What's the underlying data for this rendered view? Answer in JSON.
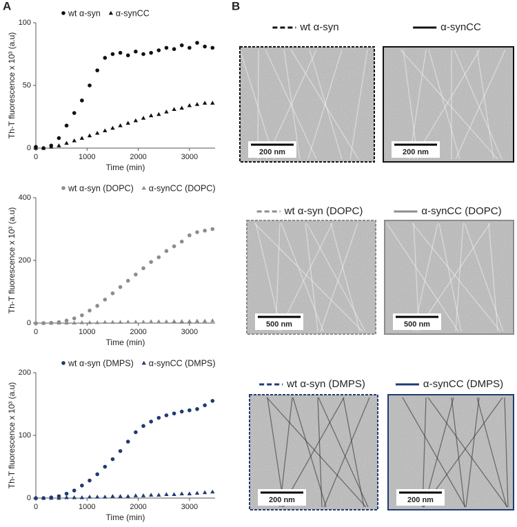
{
  "panel_a": {
    "label": "A"
  },
  "chart_data": [
    {
      "type": "scatter",
      "x_label": "Time (min)",
      "y_label": "Th-T fluorescence x 10³ (a.u)",
      "xlim": [
        0,
        3500
      ],
      "xticks": [
        0,
        1000,
        2000,
        3000
      ],
      "ylim": [
        0,
        100
      ],
      "yticks": [
        0,
        50,
        100
      ],
      "x": [
        0,
        150,
        300,
        450,
        600,
        750,
        900,
        1050,
        1200,
        1350,
        1500,
        1650,
        1800,
        1950,
        2100,
        2250,
        2400,
        2550,
        2700,
        2850,
        3000,
        3150,
        3300,
        3450
      ],
      "series": [
        {
          "name": "wt α-syn",
          "color": "#111111",
          "marker": "circle",
          "values": [
            1,
            0,
            2,
            8,
            18,
            28,
            38,
            50,
            62,
            72,
            75,
            76,
            74,
            77,
            75,
            76,
            78,
            80,
            79,
            82,
            80,
            84,
            81,
            80
          ]
        },
        {
          "name": "α-synCC",
          "color": "#111111",
          "marker": "triangle",
          "values": [
            0,
            0,
            1,
            2,
            4,
            6,
            8,
            10,
            12,
            14,
            16,
            18,
            20,
            22,
            24,
            26,
            27,
            29,
            31,
            32,
            34,
            35,
            36,
            36
          ]
        }
      ]
    },
    {
      "type": "scatter",
      "x_label": "Time (min)",
      "y_label": "Th-T fluorescence x 10³ (a.u)",
      "xlim": [
        0,
        3500
      ],
      "xticks": [
        0,
        1000,
        2000,
        3000
      ],
      "ylim": [
        0,
        400
      ],
      "yticks": [
        0,
        200,
        400
      ],
      "x": [
        0,
        150,
        300,
        450,
        600,
        750,
        900,
        1050,
        1200,
        1350,
        1500,
        1650,
        1800,
        1950,
        2100,
        2250,
        2400,
        2550,
        2700,
        2850,
        3000,
        3150,
        3300,
        3450
      ],
      "series": [
        {
          "name": "wt α-syn (DOPC)",
          "color": "#8c8c8c",
          "marker": "circle",
          "values": [
            0,
            0,
            1,
            3,
            8,
            15,
            25,
            40,
            55,
            75,
            95,
            115,
            135,
            155,
            175,
            195,
            210,
            230,
            245,
            260,
            280,
            290,
            295,
            300
          ]
        },
        {
          "name": "α-synCC (DOPC)",
          "color": "#8c8c8c",
          "marker": "triangle",
          "values": [
            0,
            0,
            0,
            1,
            1,
            1,
            2,
            2,
            2,
            3,
            3,
            3,
            4,
            4,
            4,
            5,
            5,
            5,
            6,
            6,
            6,
            7,
            7,
            8
          ]
        }
      ]
    },
    {
      "type": "scatter",
      "x_label": "Time (min)",
      "y_label": "Th-T fluorescence x 10³ (a.u)",
      "xlim": [
        0,
        3500
      ],
      "xticks": [
        0,
        1000,
        2000,
        3000
      ],
      "ylim": [
        0,
        200
      ],
      "yticks": [
        0,
        100,
        200
      ],
      "x": [
        0,
        150,
        300,
        450,
        600,
        750,
        900,
        1050,
        1200,
        1350,
        1500,
        1650,
        1800,
        1950,
        2100,
        2250,
        2400,
        2550,
        2700,
        2850,
        3000,
        3150,
        3300,
        3450
      ],
      "series": [
        {
          "name": "wt α-syn (DMPS)",
          "color": "#1f3a73",
          "marker": "circle",
          "values": [
            0,
            0,
            1,
            3,
            7,
            12,
            20,
            28,
            38,
            50,
            62,
            75,
            90,
            105,
            115,
            122,
            128,
            132,
            135,
            138,
            140,
            142,
            148,
            155
          ]
        },
        {
          "name": "α-synCC (DMPS)",
          "color": "#1f3a73",
          "marker": "triangle",
          "values": [
            0,
            0,
            0,
            0,
            1,
            1,
            1,
            2,
            2,
            2,
            3,
            3,
            3,
            4,
            4,
            5,
            5,
            6,
            6,
            7,
            7,
            8,
            9,
            10
          ]
        }
      ]
    }
  ],
  "panel_b": {
    "label": "B",
    "rows": [
      {
        "color": "#111111",
        "left": {
          "caption": "wt α-syn",
          "scale": "200 nm"
        },
        "right": {
          "caption": "α-synCC",
          "scale": "200 nm"
        }
      },
      {
        "color": "#8c8c8c",
        "left": {
          "caption": "wt α-syn (DOPC)",
          "scale": "500 nm"
        },
        "right": {
          "caption": "α-synCC (DOPC)",
          "scale": "500 nm"
        }
      },
      {
        "color": "#1f3a73",
        "left": {
          "caption": "wt α-syn (DMPS)",
          "scale": "200 nm"
        },
        "right": {
          "caption": "α-synCC (DMPS)",
          "scale": "200 nm"
        }
      }
    ]
  }
}
